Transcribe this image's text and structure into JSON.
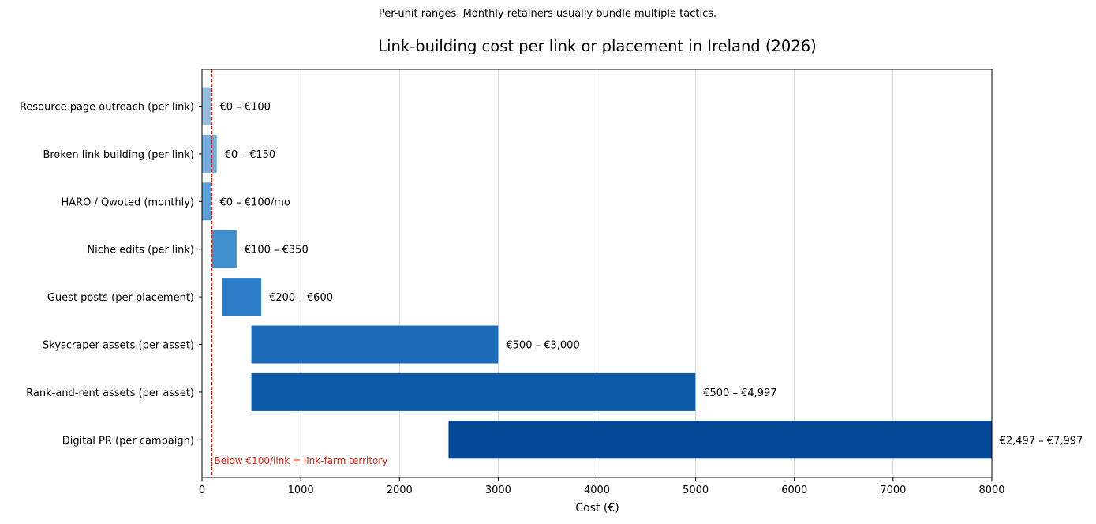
{
  "chart_data": {
    "type": "bar",
    "orientation": "horizontal",
    "subtitle": "Per-unit ranges. Monthly retainers usually bundle multiple tactics.",
    "title": "Link-building cost per link or placement in Ireland (2026)",
    "xlabel": "Cost (€)",
    "ylabel": "",
    "xlim": [
      0,
      8000
    ],
    "xticks": [
      "0",
      "1000",
      "2000",
      "3000",
      "4000",
      "5000",
      "6000",
      "7000",
      "8000"
    ],
    "grid": "vertical",
    "categories": [
      {
        "label": "Resource page outreach (per link)",
        "low": 0,
        "high": 100,
        "value_label": "€0 – €100",
        "color": "#92bddc"
      },
      {
        "label": "Broken link building (per link)",
        "low": 0,
        "high": 150,
        "value_label": "€0 – €150",
        "color": "#72aedb"
      },
      {
        "label": "HARO / Qwoted (monthly)",
        "low": 0,
        "high": 100,
        "value_label": "€0 – €100/mo",
        "color": "#5aa0d8"
      },
      {
        "label": "Niche edits (per link)",
        "low": 100,
        "high": 350,
        "value_label": "€100 – €350",
        "color": "#4090d0"
      },
      {
        "label": "Guest posts (per placement)",
        "low": 200,
        "high": 600,
        "value_label": "€200 – €600",
        "color": "#2c7dc7"
      },
      {
        "label": "Skyscraper assets (per asset)",
        "low": 500,
        "high": 3000,
        "value_label": "€500 – €3,000",
        "color": "#1b6bbb"
      },
      {
        "label": "Rank-and-rent assets (per asset)",
        "low": 500,
        "high": 4997,
        "value_label": "€500 – €4,997",
        "color": "#0e5aab"
      },
      {
        "label": "Digital PR (per campaign)",
        "low": 2497,
        "high": 7997,
        "value_label": "€2,497 – €7,997",
        "color": "#034797"
      }
    ],
    "reference_line": {
      "x": 100,
      "label": "Below €100/link = link-farm territory",
      "color": "#e8210d"
    }
  }
}
